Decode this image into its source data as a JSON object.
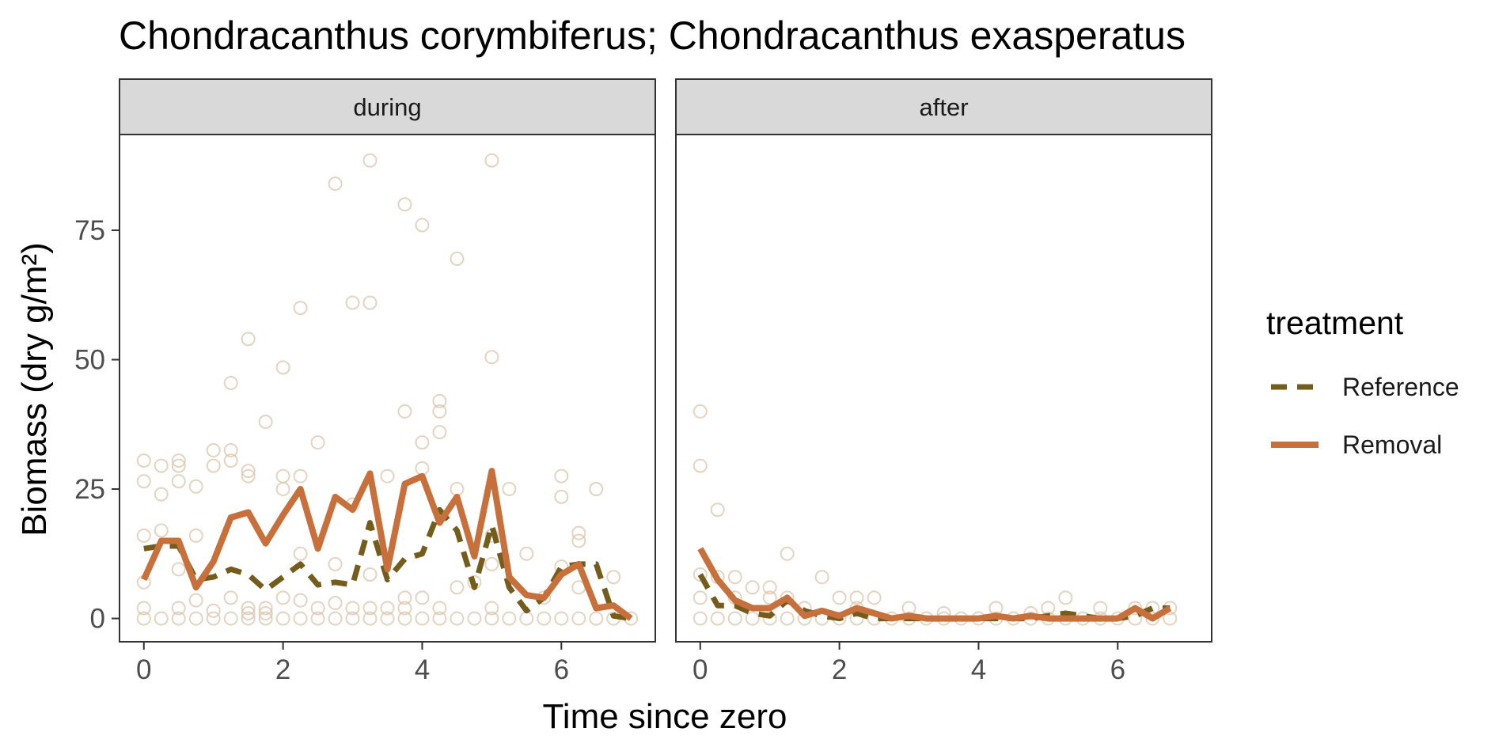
{
  "chart_data": {
    "type": "line",
    "title": "Chondracanthus corymbiferus; Chondracanthus exasperatus",
    "xlabel": "Time since zero",
    "ylabel": "Biomass (dry g/m²)",
    "xlim": [
      -0.35,
      7.35
    ],
    "ylim": [
      -4.5,
      93.5
    ],
    "x_ticks": [
      0,
      2,
      4,
      6
    ],
    "y_ticks": [
      0,
      25,
      50,
      75
    ],
    "grid": false,
    "legend": {
      "title": "treatment",
      "placement": "right",
      "entries": [
        {
          "label": "Reference",
          "color": "#735c1c",
          "dash": "dashed"
        },
        {
          "label": "Removal",
          "color": "#c8703c",
          "dash": "solid"
        }
      ]
    },
    "colors": {
      "reference": "#735c1c",
      "removal": "#c8703c",
      "points": "#dcc4aa",
      "strip": "#d9d9d9"
    },
    "panels": [
      {
        "strip": "during",
        "series": [
          {
            "name": "Reference",
            "x": [
              0,
              0.25,
              0.5,
              0.75,
              1,
              1.25,
              1.5,
              1.75,
              2,
              2.25,
              2.5,
              2.75,
              3,
              3.25,
              3.5,
              3.75,
              4,
              4.25,
              4.5,
              4.75,
              5,
              5.25,
              5.5,
              5.75,
              6,
              6.25,
              6.5,
              6.75,
              7
            ],
            "y": [
              13.5,
              14,
              14,
              7.5,
              8,
              9.5,
              8.5,
              5.5,
              8,
              10.5,
              6.5,
              7,
              6.5,
              18.5,
              7.5,
              11.5,
              12.5,
              21,
              17,
              6,
              18,
              6,
              1.5,
              4,
              10,
              10.5,
              10.5,
              0.5,
              0
            ]
          },
          {
            "name": "Removal",
            "x": [
              0,
              0.25,
              0.5,
              0.75,
              1,
              1.25,
              1.5,
              1.75,
              2,
              2.25,
              2.5,
              2.75,
              3,
              3.25,
              3.5,
              3.75,
              4,
              4.25,
              4.5,
              4.75,
              5,
              5.25,
              5.5,
              5.75,
              6,
              6.25,
              6.5,
              6.75,
              7
            ],
            "y": [
              7.5,
              15,
              15,
              6,
              11,
              19.5,
              20.5,
              14.5,
              20,
              25,
              13.5,
              23.5,
              21,
              28,
              9.5,
              26,
              27.5,
              18.5,
              23.5,
              12,
              28.5,
              8,
              4.5,
              4,
              8.5,
              10.5,
              2,
              2.5,
              0
            ]
          }
        ],
        "points": [
          [
            0,
            30.5
          ],
          [
            0,
            26.5
          ],
          [
            0,
            16
          ],
          [
            0,
            7
          ],
          [
            0,
            2
          ],
          [
            0,
            0
          ],
          [
            0.25,
            29.5
          ],
          [
            0.25,
            24
          ],
          [
            0.25,
            17
          ],
          [
            0.25,
            0
          ],
          [
            0.5,
            30.5
          ],
          [
            0.5,
            29.5
          ],
          [
            0.5,
            26.5
          ],
          [
            0.5,
            9.5
          ],
          [
            0.5,
            2
          ],
          [
            0.5,
            0
          ],
          [
            0.75,
            25.5
          ],
          [
            0.75,
            16
          ],
          [
            0.75,
            3.5
          ],
          [
            0.75,
            0
          ],
          [
            1,
            32.5
          ],
          [
            1,
            29.5
          ],
          [
            1,
            1.5
          ],
          [
            1,
            0
          ],
          [
            1.25,
            45.5
          ],
          [
            1.25,
            32.5
          ],
          [
            1.25,
            30.5
          ],
          [
            1.25,
            4
          ],
          [
            1.25,
            0
          ],
          [
            1.5,
            54
          ],
          [
            1.5,
            28.5
          ],
          [
            1.5,
            27.5
          ],
          [
            1.5,
            2
          ],
          [
            1.5,
            1
          ],
          [
            1.5,
            0
          ],
          [
            1.75,
            38
          ],
          [
            1.75,
            2
          ],
          [
            1.75,
            1
          ],
          [
            1.75,
            0
          ],
          [
            2,
            48.5
          ],
          [
            2,
            27.5
          ],
          [
            2,
            25
          ],
          [
            2,
            4
          ],
          [
            2,
            0
          ],
          [
            2.25,
            60
          ],
          [
            2.25,
            27.5
          ],
          [
            2.25,
            12.5
          ],
          [
            2.25,
            3.5
          ],
          [
            2.25,
            0
          ],
          [
            2.5,
            34
          ],
          [
            2.5,
            2
          ],
          [
            2.5,
            0
          ],
          [
            2.75,
            84
          ],
          [
            2.75,
            10.5
          ],
          [
            2.75,
            3
          ],
          [
            2.75,
            0
          ],
          [
            3,
            61
          ],
          [
            3,
            22
          ],
          [
            3,
            2
          ],
          [
            3,
            0
          ],
          [
            3.25,
            88.5
          ],
          [
            3.25,
            61
          ],
          [
            3.25,
            8.5
          ],
          [
            3.25,
            2
          ],
          [
            3.25,
            0
          ],
          [
            3.5,
            27.5
          ],
          [
            3.5,
            2
          ],
          [
            3.5,
            0
          ],
          [
            3.75,
            80
          ],
          [
            3.75,
            40
          ],
          [
            3.75,
            4
          ],
          [
            3.75,
            2
          ],
          [
            3.75,
            0
          ],
          [
            4,
            76
          ],
          [
            4,
            34
          ],
          [
            4,
            29
          ],
          [
            4,
            4
          ],
          [
            4,
            0
          ],
          [
            4.25,
            42
          ],
          [
            4.25,
            40
          ],
          [
            4.25,
            36
          ],
          [
            4.25,
            2
          ],
          [
            4.25,
            0
          ],
          [
            4.5,
            69.5
          ],
          [
            4.5,
            25
          ],
          [
            4.5,
            6
          ],
          [
            4.5,
            0
          ],
          [
            4.75,
            7
          ],
          [
            4.75,
            0
          ],
          [
            5,
            88.5
          ],
          [
            5,
            50.5
          ],
          [
            5,
            16
          ],
          [
            5,
            10.5
          ],
          [
            5,
            2
          ],
          [
            5,
            0
          ],
          [
            5.25,
            25
          ],
          [
            5.25,
            0
          ],
          [
            5.5,
            12.5
          ],
          [
            5.5,
            0
          ],
          [
            5.75,
            4
          ],
          [
            5.75,
            0
          ],
          [
            6,
            27.5
          ],
          [
            6,
            23.5
          ],
          [
            6,
            10
          ],
          [
            6,
            0
          ],
          [
            6.25,
            16.5
          ],
          [
            6.25,
            15
          ],
          [
            6.25,
            6
          ],
          [
            6.25,
            0
          ],
          [
            6.5,
            25
          ],
          [
            6.5,
            0
          ],
          [
            6.75,
            8
          ],
          [
            6.75,
            0
          ],
          [
            7,
            0
          ]
        ]
      },
      {
        "strip": "after",
        "series": [
          {
            "name": "Reference",
            "x": [
              0,
              0.25,
              0.5,
              0.75,
              1,
              1.25,
              1.5,
              1.75,
              2,
              2.25,
              2.5,
              2.75,
              3,
              3.25,
              3.5,
              3.75,
              4,
              4.25,
              4.5,
              4.75,
              5,
              5.25,
              5.5,
              5.75,
              6,
              6.25,
              6.5,
              6.75
            ],
            "y": [
              8.5,
              2.5,
              2.5,
              1,
              0.5,
              3.5,
              1.5,
              0.5,
              0,
              1,
              0,
              0,
              0,
              0,
              0,
              0,
              0,
              0,
              0,
              0,
              0.5,
              1,
              0.5,
              0,
              0,
              0.5,
              2,
              2
            ]
          },
          {
            "name": "Removal",
            "x": [
              0,
              0.25,
              0.5,
              0.75,
              1,
              1.25,
              1.5,
              1.75,
              2,
              2.25,
              2.5,
              2.75,
              3,
              3.25,
              3.5,
              3.75,
              4,
              4.25,
              4.5,
              4.75,
              5,
              5.25,
              5.5,
              5.75,
              6,
              6.25,
              6.5,
              6.75
            ],
            "y": [
              13.5,
              7.5,
              3.5,
              2,
              2,
              4,
              0.5,
              1.5,
              0.5,
              2,
              1,
              0,
              0.5,
              0,
              0,
              0,
              0,
              0.5,
              0,
              0.5,
              0,
              0,
              0,
              0,
              0,
              2,
              0,
              2
            ]
          }
        ],
        "points": [
          [
            0,
            40
          ],
          [
            0,
            29.5
          ],
          [
            0,
            8.5
          ],
          [
            0,
            4
          ],
          [
            0,
            0
          ],
          [
            0.25,
            21
          ],
          [
            0.25,
            8
          ],
          [
            0.25,
            0
          ],
          [
            0.5,
            8
          ],
          [
            0.5,
            4
          ],
          [
            0.5,
            0
          ],
          [
            0.75,
            6
          ],
          [
            0.75,
            0
          ],
          [
            1,
            6
          ],
          [
            1,
            4
          ],
          [
            1,
            0
          ],
          [
            1.25,
            12.5
          ],
          [
            1.25,
            4
          ],
          [
            1.25,
            0
          ],
          [
            1.5,
            2
          ],
          [
            1.5,
            0
          ],
          [
            1.75,
            8
          ],
          [
            1.75,
            0
          ],
          [
            2,
            4
          ],
          [
            2,
            0
          ],
          [
            2.25,
            4
          ],
          [
            2.25,
            2
          ],
          [
            2.25,
            0
          ],
          [
            2.5,
            4
          ],
          [
            2.5,
            0
          ],
          [
            2.75,
            0
          ],
          [
            3,
            2
          ],
          [
            3,
            0
          ],
          [
            3.25,
            0
          ],
          [
            3.5,
            1
          ],
          [
            3.5,
            0
          ],
          [
            3.75,
            0
          ],
          [
            4,
            0
          ],
          [
            4.25,
            2
          ],
          [
            4.25,
            0
          ],
          [
            4.5,
            0
          ],
          [
            4.75,
            1
          ],
          [
            4.75,
            0
          ],
          [
            5,
            2
          ],
          [
            5,
            0
          ],
          [
            5.25,
            4
          ],
          [
            5.25,
            0
          ],
          [
            5.5,
            0
          ],
          [
            5.75,
            2
          ],
          [
            5.75,
            0
          ],
          [
            6,
            0
          ],
          [
            6.25,
            2
          ],
          [
            6.25,
            0
          ],
          [
            6.5,
            2
          ],
          [
            6.5,
            0
          ],
          [
            6.75,
            2
          ],
          [
            6.75,
            0
          ]
        ]
      }
    ]
  }
}
